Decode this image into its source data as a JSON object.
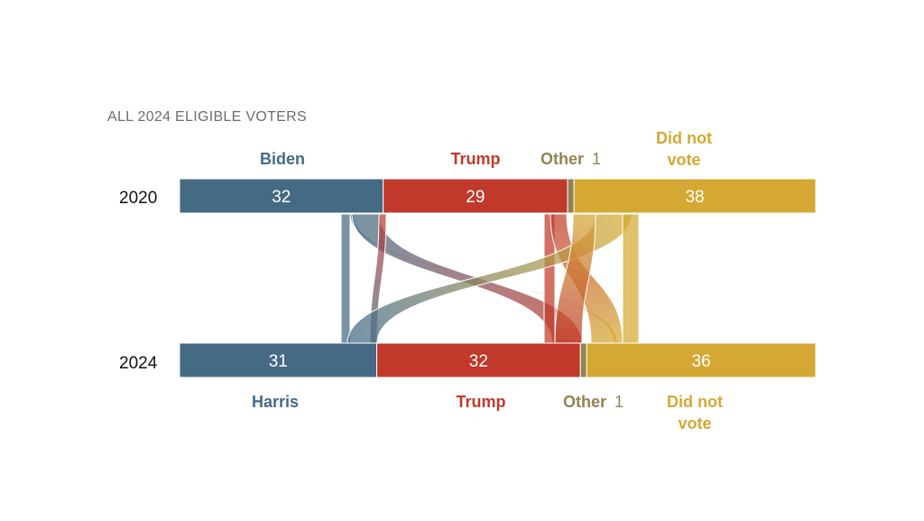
{
  "chart_data": {
    "type": "sankey",
    "title": "ALL 2024 ELIGIBLE VOTERS",
    "rows": [
      {
        "year": "2020",
        "segments": [
          {
            "name": "Biden",
            "value": 32,
            "color": "#456a84"
          },
          {
            "name": "Trump",
            "value": 29,
            "color": "#c0392b"
          },
          {
            "name": "Other",
            "value": 1,
            "color": "#8f8550"
          },
          {
            "name": "Did not vote",
            "value": 38,
            "color": "#d4a833"
          }
        ]
      },
      {
        "year": "2024",
        "segments": [
          {
            "name": "Harris",
            "value": 31,
            "color": "#456a84"
          },
          {
            "name": "Trump",
            "value": 32,
            "color": "#c0392b"
          },
          {
            "name": "Other",
            "value": 1,
            "color": "#8f8550"
          },
          {
            "name": "Did not vote",
            "value": 36,
            "color": "#d4a833"
          }
        ]
      }
    ],
    "flows": [
      {
        "from": "Biden",
        "to": "Harris"
      },
      {
        "from": "Biden",
        "to": "Did not vote"
      },
      {
        "from": "Biden",
        "to": "Trump"
      },
      {
        "from": "Trump",
        "to": "Harris"
      },
      {
        "from": "Trump",
        "to": "Trump"
      },
      {
        "from": "Trump",
        "to": "Did not vote"
      },
      {
        "from": "Did not vote",
        "to": "Harris"
      },
      {
        "from": "Did not vote",
        "to": "Trump"
      },
      {
        "from": "Did not vote",
        "to": "Did not vote"
      }
    ],
    "labels": {
      "top": [
        "Biden",
        "Trump",
        "Other",
        "1",
        "Did not",
        "vote"
      ],
      "bottom": [
        "Harris",
        "Trump",
        "Other",
        "1",
        "Did not",
        "vote"
      ]
    }
  }
}
